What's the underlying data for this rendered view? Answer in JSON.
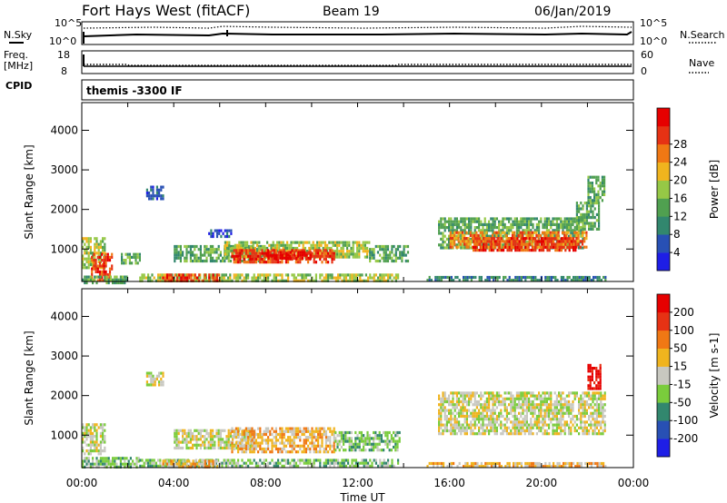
{
  "header": {
    "radar": "Fort Hays West (fitACF)",
    "beam": "Beam 19",
    "date": "06/Jan/2019"
  },
  "top_panels": {
    "nsky_label": "N.Sky",
    "nsearch_label": "N.Search",
    "noise_ticks": [
      "10^5",
      "10^0"
    ],
    "freq_label_1": "Freq.",
    "freq_label_2": "[MHz]",
    "freq_ticks": [
      "18",
      "8"
    ],
    "nave_label": "Nave",
    "nave_ticks": [
      "60",
      "0"
    ],
    "cpid_label": "CPID",
    "cpid_value": "themis -3300 IF"
  },
  "colors": {
    "power": [
      "#1e1ee6",
      "#2850b4",
      "#32876e",
      "#50a050",
      "#96c846",
      "#f0b41e",
      "#f07814",
      "#e63214",
      "#e60000"
    ],
    "velocity": [
      "#1e1ee6",
      "#2850b4",
      "#32876e",
      "#7acc3c",
      "#c8c8c0",
      "#f0b41e",
      "#f07814",
      "#e63214",
      "#e60000"
    ]
  },
  "chart_data": [
    {
      "type": "heatmap",
      "name": "power",
      "ylabel": "Slant Range [km]",
      "yticks": [
        1000,
        2000,
        3000,
        4000
      ],
      "ylim": [
        180,
        4700
      ],
      "xlim": [
        0,
        24
      ],
      "colorbar_label": "Power [dB]",
      "colorbar_ticks": [
        "4",
        "8",
        "12",
        "16",
        "20",
        "24",
        "28"
      ],
      "regions": [
        {
          "t0": 0.0,
          "t1": 1.0,
          "r0": 500,
          "r1": 1300,
          "level": 4
        },
        {
          "t0": 0.4,
          "t1": 1.3,
          "r0": 200,
          "r1": 900,
          "level": 7
        },
        {
          "t0": 0.0,
          "t1": 2.0,
          "r0": 180,
          "r1": 330,
          "level": 3
        },
        {
          "t0": 1.7,
          "t1": 2.5,
          "r0": 650,
          "r1": 900,
          "level": 3
        },
        {
          "t0": 2.5,
          "t1": 13.8,
          "r0": 180,
          "r1": 380,
          "level": 4
        },
        {
          "t0": 3.5,
          "t1": 6.0,
          "r0": 180,
          "r1": 380,
          "level": 7
        },
        {
          "t0": 4.0,
          "t1": 8.0,
          "r0": 700,
          "r1": 1100,
          "level": 3
        },
        {
          "t0": 6.2,
          "t1": 12.5,
          "r0": 800,
          "r1": 1200,
          "level": 4
        },
        {
          "t0": 6.5,
          "t1": 11.0,
          "r0": 700,
          "r1": 1000,
          "level": 7
        },
        {
          "t0": 8.0,
          "t1": 10.0,
          "r0": 750,
          "r1": 950,
          "level": 8
        },
        {
          "t0": 12.5,
          "t1": 14.2,
          "r0": 700,
          "r1": 1100,
          "level": 3
        },
        {
          "t0": 2.8,
          "t1": 3.5,
          "r0": 2300,
          "r1": 2600,
          "level": 1
        },
        {
          "t0": 5.5,
          "t1": 6.5,
          "r0": 1300,
          "r1": 1500,
          "level": 1
        },
        {
          "t0": 15.5,
          "t1": 21.8,
          "r0": 1050,
          "r1": 1800,
          "level": 3
        },
        {
          "t0": 16.0,
          "t1": 22.0,
          "r0": 1050,
          "r1": 1450,
          "level": 6
        },
        {
          "t0": 17.0,
          "t1": 21.5,
          "r0": 1000,
          "r1": 1300,
          "level": 7
        },
        {
          "t0": 21.5,
          "t1": 22.5,
          "r0": 1500,
          "r1": 2200,
          "level": 3
        },
        {
          "t0": 22.0,
          "t1": 22.7,
          "r0": 2200,
          "r1": 2850,
          "level": 3
        },
        {
          "t0": 15.0,
          "t1": 22.8,
          "r0": 180,
          "r1": 320,
          "level": 2
        }
      ]
    },
    {
      "type": "heatmap",
      "name": "velocity",
      "ylabel": "Slant Range [km]",
      "xlabel": "Time UT",
      "xticks": [
        "00:00",
        "04:00",
        "08:00",
        "12:00",
        "16:00",
        "20:00",
        "00:00"
      ],
      "yticks": [
        1000,
        2000,
        3000,
        4000
      ],
      "ylim": [
        180,
        4700
      ],
      "xlim": [
        0,
        24
      ],
      "colorbar_label": "Velocity [m s-1]",
      "colorbar_ticks": [
        "200",
        "100",
        "50",
        "15",
        "-15",
        "-50",
        "-100",
        "-200"
      ],
      "regions": [
        {
          "t0": 0.0,
          "t1": 1.0,
          "r0": 500,
          "r1": 1300,
          "level": 4
        },
        {
          "t0": 0.0,
          "t1": 2.5,
          "r0": 180,
          "r1": 450,
          "level": 3
        },
        {
          "t0": 2.5,
          "t1": 13.8,
          "r0": 180,
          "r1": 400,
          "level": 3
        },
        {
          "t0": 3.5,
          "t1": 6.0,
          "r0": 180,
          "r1": 380,
          "level": 5
        },
        {
          "t0": 4.0,
          "t1": 7.5,
          "r0": 700,
          "r1": 1150,
          "level": 4
        },
        {
          "t0": 6.5,
          "t1": 11.0,
          "r0": 600,
          "r1": 1200,
          "level": 5
        },
        {
          "t0": 11.0,
          "t1": 13.8,
          "r0": 600,
          "r1": 1100,
          "level": 3
        },
        {
          "t0": 2.8,
          "t1": 3.5,
          "r0": 2300,
          "r1": 2600,
          "level": 4
        },
        {
          "t0": 15.5,
          "t1": 22.8,
          "r0": 1050,
          "r1": 2100,
          "level": 4
        },
        {
          "t0": 22.0,
          "t1": 22.6,
          "r0": 2200,
          "r1": 2800,
          "level": 8
        },
        {
          "t0": 15.0,
          "t1": 22.8,
          "r0": 180,
          "r1": 320,
          "level": 5
        }
      ]
    }
  ]
}
